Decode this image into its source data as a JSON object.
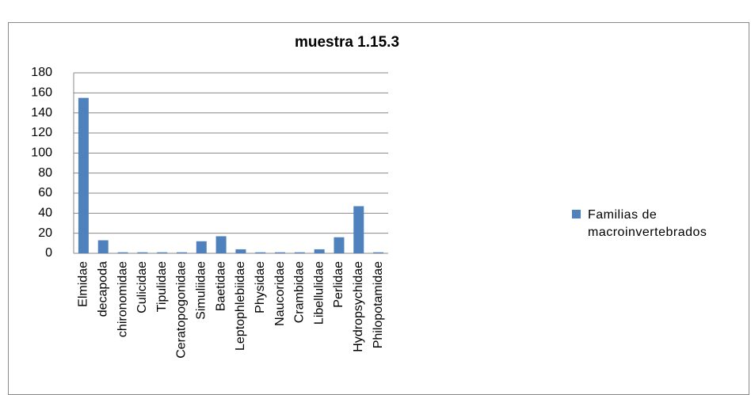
{
  "chart_data": {
    "type": "bar",
    "title": "muestra 1.15.3",
    "categories": [
      "Elmidae",
      "decapoda",
      "chironomidae",
      "Culicidae",
      "Tipulidae",
      "Ceratopogonidae",
      "Simuliidae",
      "Baetidae",
      "Leptophlebiidae",
      "Physidae",
      "Naucoridae",
      "Crambidae",
      "Libellulidae",
      "Perlidae",
      "Hydropsychidae",
      "Philopotamidae"
    ],
    "series": [
      {
        "name": "Familias de macroinvertebrados",
        "color": "#4f81bd",
        "values": [
          155,
          13,
          1,
          1,
          1,
          1,
          12,
          17,
          4,
          1,
          1,
          1,
          4,
          16,
          47,
          1
        ]
      }
    ],
    "ylim": [
      0,
      180
    ],
    "yticks": [
      0,
      20,
      40,
      60,
      80,
      100,
      120,
      140,
      160,
      180
    ],
    "grid": true,
    "legend": "right"
  }
}
